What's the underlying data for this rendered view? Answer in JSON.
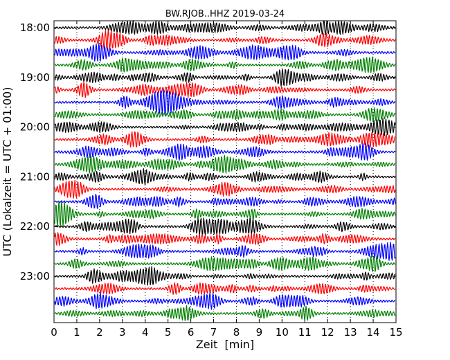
{
  "chart_data": {
    "type": "line",
    "title": "BW.RJOB..HHZ 2019-03-24",
    "xlabel": "Zeit  [min]",
    "ylabel": "UTC (Lokalzeit = UTC + 01:00)",
    "xlim": [
      0,
      15
    ],
    "x_ticks": [
      "0",
      "1",
      "2",
      "3",
      "4",
      "5",
      "6",
      "7",
      "8",
      "9",
      "10",
      "11",
      "12",
      "13",
      "14",
      "15"
    ],
    "y_ticks": [
      "18:00",
      "19:00",
      "20:00",
      "21:00",
      "22:00",
      "23:00"
    ],
    "grid": true,
    "trace_start_times": [
      "18:00",
      "18:15",
      "18:30",
      "18:45",
      "19:00",
      "19:15",
      "19:30",
      "19:45",
      "20:00",
      "20:15",
      "20:30",
      "20:45",
      "21:00",
      "21:15",
      "21:30",
      "21:45",
      "22:00",
      "22:15",
      "22:30",
      "22:45",
      "23:00",
      "23:15",
      "23:30",
      "23:45"
    ],
    "trace_colors": [
      "#000000",
      "#ff0000",
      "#0000ff",
      "#008000"
    ]
  }
}
